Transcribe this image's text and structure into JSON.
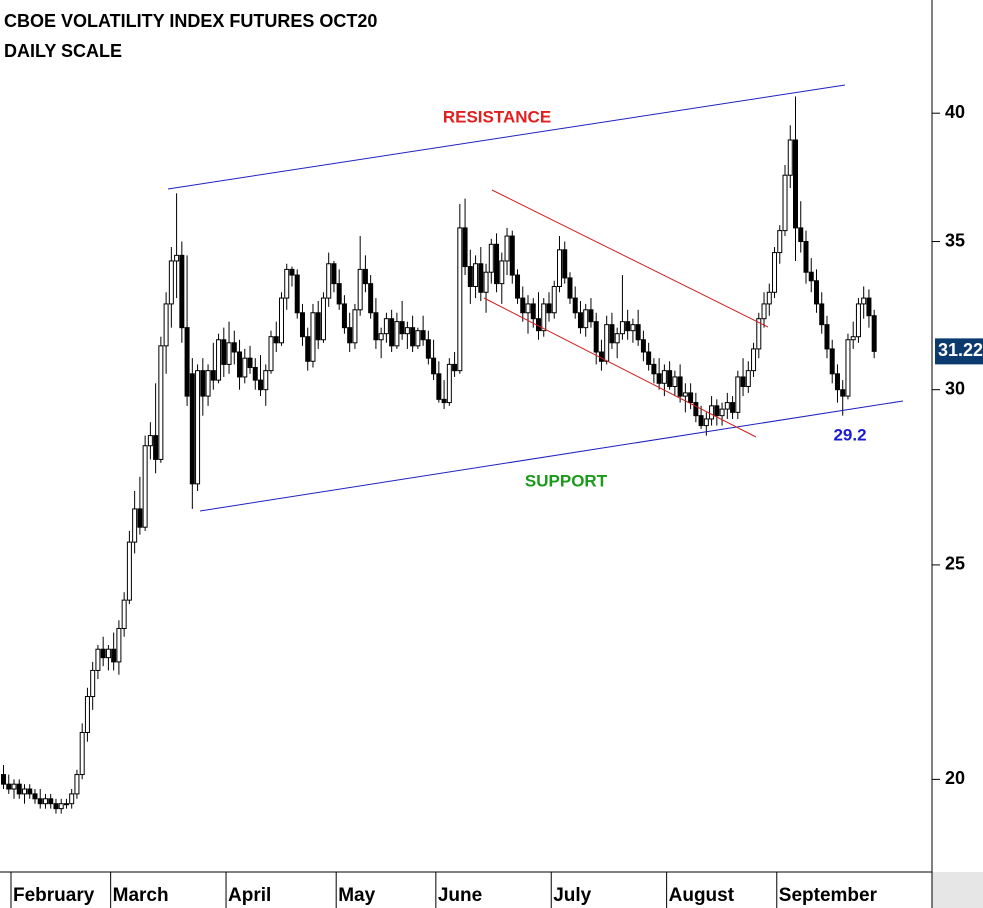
{
  "chart_data": {
    "type": "candlestick",
    "title": "CBOE VOLATILITY INDEX FUTURES OCT20",
    "subtitle": "DAILY SCALE",
    "annotations": [
      "RESISTANCE",
      "SUPPORT"
    ],
    "low_label": 29.2,
    "last_price": 31.22,
    "log_scale": true,
    "ylim": [
      18.2,
      45
    ],
    "yticks": [
      20,
      25,
      30,
      35,
      40
    ],
    "categories": [
      null,
      null,
      "February",
      null,
      null,
      null,
      null,
      null,
      null,
      null,
      null,
      null,
      null,
      null,
      null,
      null,
      null,
      null,
      null,
      null,
      null,
      "March",
      null,
      null,
      null,
      null,
      null,
      null,
      null,
      null,
      null,
      null,
      null,
      null,
      null,
      null,
      null,
      null,
      null,
      null,
      null,
      null,
      null,
      "April",
      null,
      null,
      null,
      null,
      null,
      null,
      null,
      null,
      null,
      null,
      null,
      null,
      null,
      null,
      null,
      null,
      null,
      null,
      null,
      null,
      "May",
      null,
      null,
      null,
      null,
      null,
      null,
      null,
      null,
      null,
      null,
      null,
      null,
      null,
      null,
      null,
      null,
      null,
      null,
      "June",
      null,
      null,
      null,
      null,
      null,
      null,
      null,
      null,
      null,
      null,
      null,
      null,
      null,
      null,
      null,
      null,
      null,
      null,
      null,
      null,
      null,
      "July",
      null,
      null,
      null,
      null,
      null,
      null,
      null,
      null,
      null,
      null,
      null,
      null,
      null,
      null,
      null,
      null,
      null,
      null,
      null,
      null,
      null,
      "August",
      null,
      null,
      null,
      null,
      null,
      null,
      null,
      null,
      null,
      null,
      null,
      null,
      null,
      null,
      null,
      null,
      null,
      null,
      null,
      null,
      "September",
      null,
      null,
      null,
      null,
      null,
      null,
      null,
      null,
      null,
      null,
      null,
      null,
      null,
      null,
      null,
      null,
      null
    ],
    "ohlc": [
      [
        20.1,
        20.3,
        19.8,
        19.9
      ],
      [
        19.9,
        20.1,
        19.7,
        19.8
      ],
      [
        19.8,
        20.0,
        19.6,
        19.9
      ],
      [
        19.9,
        20.0,
        19.6,
        19.7
      ],
      [
        19.7,
        19.9,
        19.5,
        19.8
      ],
      [
        19.8,
        19.9,
        19.6,
        19.7
      ],
      [
        19.7,
        19.8,
        19.5,
        19.6
      ],
      [
        19.6,
        19.8,
        19.4,
        19.5
      ],
      [
        19.5,
        19.7,
        19.4,
        19.6
      ],
      [
        19.6,
        19.7,
        19.4,
        19.5
      ],
      [
        19.5,
        19.6,
        19.3,
        19.4
      ],
      [
        19.4,
        19.6,
        19.3,
        19.5
      ],
      [
        19.5,
        19.6,
        19.4,
        19.5
      ],
      [
        19.5,
        19.8,
        19.4,
        19.7
      ],
      [
        19.7,
        20.2,
        19.6,
        20.1
      ],
      [
        20.1,
        21.2,
        20.0,
        21.0
      ],
      [
        21.0,
        22.0,
        20.8,
        21.8
      ],
      [
        21.8,
        22.6,
        21.5,
        22.4
      ],
      [
        22.4,
        23.0,
        22.2,
        22.9
      ],
      [
        22.9,
        23.2,
        22.5,
        22.7
      ],
      [
        22.7,
        23.0,
        22.4,
        22.9
      ],
      [
        22.9,
        23.3,
        22.4,
        22.6
      ],
      [
        22.6,
        23.6,
        22.3,
        23.4
      ],
      [
        23.4,
        24.3,
        23.2,
        24.1
      ],
      [
        24.1,
        25.9,
        24.0,
        25.6
      ],
      [
        25.6,
        27.0,
        25.3,
        26.5
      ],
      [
        26.5,
        27.4,
        25.8,
        26.0
      ],
      [
        26.0,
        28.6,
        25.9,
        28.3
      ],
      [
        28.3,
        29.0,
        27.9,
        28.6
      ],
      [
        28.6,
        30.2,
        27.5,
        27.9
      ],
      [
        27.9,
        31.7,
        27.8,
        31.4
      ],
      [
        31.4,
        33.2,
        30.5,
        32.8
      ],
      [
        32.8,
        34.8,
        32.0,
        34.3
      ],
      [
        34.3,
        36.8,
        33.0,
        34.5
      ],
      [
        34.5,
        35.0,
        31.5,
        32.0
      ],
      [
        32.0,
        34.5,
        29.5,
        29.8
      ],
      [
        30.5,
        31.0,
        26.5,
        27.2
      ],
      [
        27.2,
        30.8,
        27.0,
        30.6
      ],
      [
        30.6,
        31.0,
        29.2,
        29.8
      ],
      [
        29.8,
        30.8,
        29.5,
        30.6
      ],
      [
        30.6,
        31.5,
        30.0,
        30.3
      ],
      [
        30.3,
        31.8,
        30.2,
        31.6
      ],
      [
        31.6,
        32.0,
        30.4,
        30.8
      ],
      [
        30.8,
        32.2,
        30.5,
        31.5
      ],
      [
        31.5,
        31.9,
        30.8,
        31.2
      ],
      [
        31.2,
        31.6,
        30.0,
        30.4
      ],
      [
        30.4,
        31.3,
        30.2,
        31.0
      ],
      [
        31.0,
        31.4,
        30.5,
        30.7
      ],
      [
        30.7,
        31.0,
        30.0,
        30.3
      ],
      [
        30.3,
        31.1,
        29.8,
        30.0
      ],
      [
        30.0,
        30.8,
        29.5,
        30.6
      ],
      [
        30.6,
        31.9,
        30.5,
        31.7
      ],
      [
        31.7,
        32.2,
        31.2,
        31.5
      ],
      [
        31.5,
        33.2,
        31.4,
        33.0
      ],
      [
        33.0,
        34.2,
        32.6,
        34.0
      ],
      [
        34.0,
        34.1,
        33.4,
        33.8
      ],
      [
        33.8,
        34.0,
        32.3,
        32.5
      ],
      [
        32.5,
        32.8,
        31.4,
        31.7
      ],
      [
        31.7,
        32.0,
        30.6,
        30.9
      ],
      [
        30.9,
        32.8,
        30.7,
        32.5
      ],
      [
        32.5,
        32.9,
        31.3,
        31.6
      ],
      [
        31.6,
        33.2,
        31.5,
        33.0
      ],
      [
        33.0,
        34.6,
        32.7,
        34.2
      ],
      [
        34.2,
        34.3,
        33.2,
        33.5
      ],
      [
        33.5,
        34.0,
        32.6,
        32.8
      ],
      [
        32.8,
        33.1,
        31.8,
        32.0
      ],
      [
        32.0,
        32.5,
        31.2,
        31.5
      ],
      [
        31.5,
        32.8,
        31.3,
        32.6
      ],
      [
        32.6,
        35.2,
        32.4,
        34.0
      ],
      [
        34.0,
        34.5,
        33.2,
        33.5
      ],
      [
        33.5,
        33.8,
        32.3,
        32.5
      ],
      [
        32.5,
        33.0,
        31.3,
        31.6
      ],
      [
        31.6,
        32.0,
        31.0,
        31.8
      ],
      [
        31.8,
        32.5,
        31.5,
        32.3
      ],
      [
        32.3,
        32.6,
        31.2,
        31.4
      ],
      [
        31.4,
        32.5,
        31.3,
        32.2
      ],
      [
        32.2,
        32.9,
        31.6,
        31.8
      ],
      [
        31.8,
        32.2,
        31.3,
        32.0
      ],
      [
        32.0,
        32.4,
        31.2,
        31.4
      ],
      [
        31.4,
        32.0,
        31.3,
        31.9
      ],
      [
        31.9,
        32.4,
        31.4,
        31.6
      ],
      [
        31.6,
        31.9,
        30.8,
        31.0
      ],
      [
        31.0,
        31.6,
        30.3,
        30.5
      ],
      [
        30.5,
        30.9,
        29.6,
        29.7
      ],
      [
        29.7,
        30.3,
        29.4,
        29.6
      ],
      [
        29.6,
        31.0,
        29.5,
        30.8
      ],
      [
        30.8,
        31.2,
        30.4,
        30.6
      ],
      [
        30.6,
        36.4,
        30.5,
        35.5
      ],
      [
        35.5,
        36.6,
        33.8,
        34.1
      ],
      [
        34.1,
        34.7,
        32.8,
        33.4
      ],
      [
        33.4,
        34.5,
        33.0,
        34.2
      ],
      [
        34.2,
        34.8,
        32.9,
        33.2
      ],
      [
        33.2,
        34.2,
        32.5,
        33.9
      ],
      [
        33.9,
        35.1,
        33.5,
        34.9
      ],
      [
        34.9,
        35.3,
        33.2,
        33.5
      ],
      [
        33.5,
        34.6,
        32.8,
        34.3
      ],
      [
        34.3,
        35.5,
        33.8,
        35.2
      ],
      [
        35.2,
        35.4,
        33.5,
        33.8
      ],
      [
        33.8,
        34.0,
        32.8,
        33.0
      ],
      [
        33.0,
        33.4,
        32.2,
        32.5
      ],
      [
        32.5,
        33.1,
        31.8,
        32.8
      ],
      [
        32.8,
        33.0,
        32.0,
        32.3
      ],
      [
        32.3,
        33.2,
        31.6,
        31.9
      ],
      [
        31.9,
        33.0,
        31.7,
        32.8
      ],
      [
        32.8,
        33.2,
        32.2,
        32.5
      ],
      [
        32.5,
        33.6,
        32.3,
        33.4
      ],
      [
        33.4,
        35.2,
        33.2,
        34.7
      ],
      [
        34.7,
        35.0,
        33.5,
        33.7
      ],
      [
        33.7,
        33.9,
        32.8,
        33.0
      ],
      [
        33.0,
        33.4,
        32.3,
        32.5
      ],
      [
        32.5,
        32.9,
        31.8,
        32.0
      ],
      [
        32.0,
        32.8,
        31.7,
        32.6
      ],
      [
        32.6,
        33.0,
        32.0,
        32.2
      ],
      [
        32.2,
        32.5,
        30.8,
        31.2
      ],
      [
        31.2,
        31.6,
        30.6,
        30.9
      ],
      [
        30.9,
        32.4,
        30.8,
        32.1
      ],
      [
        32.1,
        32.5,
        31.3,
        31.5
      ],
      [
        31.5,
        32.0,
        31.0,
        31.8
      ],
      [
        31.8,
        33.8,
        31.6,
        32.2
      ],
      [
        32.2,
        32.6,
        31.6,
        31.9
      ],
      [
        31.9,
        32.3,
        31.5,
        32.1
      ],
      [
        32.1,
        32.6,
        31.4,
        31.6
      ],
      [
        31.6,
        31.9,
        30.9,
        31.2
      ],
      [
        31.2,
        31.5,
        30.6,
        30.8
      ],
      [
        30.8,
        31.0,
        30.2,
        30.5
      ],
      [
        30.5,
        31.0,
        30.0,
        30.2
      ],
      [
        30.2,
        30.8,
        29.8,
        30.6
      ],
      [
        30.6,
        30.9,
        30.0,
        30.1
      ],
      [
        30.1,
        30.6,
        29.8,
        30.4
      ],
      [
        30.4,
        30.8,
        29.6,
        29.8
      ],
      [
        29.8,
        30.2,
        29.3,
        29.9
      ],
      [
        29.9,
        30.2,
        29.4,
        29.6
      ],
      [
        29.6,
        29.9,
        29.0,
        29.2
      ],
      [
        29.2,
        29.5,
        28.8,
        28.9
      ],
      [
        28.9,
        29.3,
        28.6,
        29.1
      ],
      [
        29.1,
        29.8,
        28.9,
        29.5
      ],
      [
        29.5,
        29.7,
        28.9,
        29.2
      ],
      [
        29.2,
        29.6,
        28.9,
        29.4
      ],
      [
        29.4,
        29.9,
        29.1,
        29.6
      ],
      [
        29.6,
        29.8,
        29.1,
        29.3
      ],
      [
        29.3,
        30.6,
        29.1,
        30.4
      ],
      [
        30.4,
        31.0,
        29.8,
        30.1
      ],
      [
        30.1,
        30.9,
        29.9,
        30.6
      ],
      [
        30.6,
        31.5,
        30.4,
        31.3
      ],
      [
        31.3,
        32.5,
        31.0,
        32.3
      ],
      [
        32.3,
        33.2,
        32.0,
        32.8
      ],
      [
        32.8,
        33.5,
        32.4,
        33.2
      ],
      [
        33.2,
        34.8,
        33.0,
        34.6
      ],
      [
        34.6,
        35.6,
        34.2,
        35.4
      ],
      [
        35.4,
        37.9,
        35.2,
        37.5
      ],
      [
        37.5,
        39.5,
        37.0,
        38.9
      ],
      [
        38.9,
        40.7,
        34.3,
        35.5
      ],
      [
        35.5,
        36.5,
        34.6,
        35.0
      ],
      [
        35.0,
        35.4,
        33.5,
        33.9
      ],
      [
        33.9,
        34.4,
        33.2,
        33.6
      ],
      [
        33.6,
        34.0,
        32.5,
        32.8
      ],
      [
        32.8,
        33.2,
        31.8,
        32.1
      ],
      [
        32.1,
        32.4,
        31.0,
        31.3
      ],
      [
        31.3,
        31.6,
        30.2,
        30.5
      ],
      [
        30.5,
        30.8,
        29.6,
        30.0
      ],
      [
        30.0,
        30.3,
        29.2,
        29.8
      ],
      [
        29.8,
        31.8,
        29.7,
        31.6
      ],
      [
        31.6,
        32.2,
        31.3,
        31.7
      ],
      [
        31.7,
        33.0,
        31.5,
        32.8
      ],
      [
        32.8,
        33.4,
        32.3,
        33.0
      ],
      [
        33.0,
        33.3,
        32.0,
        32.4
      ],
      [
        32.4,
        32.6,
        31.0,
        31.22
      ]
    ]
  }
}
